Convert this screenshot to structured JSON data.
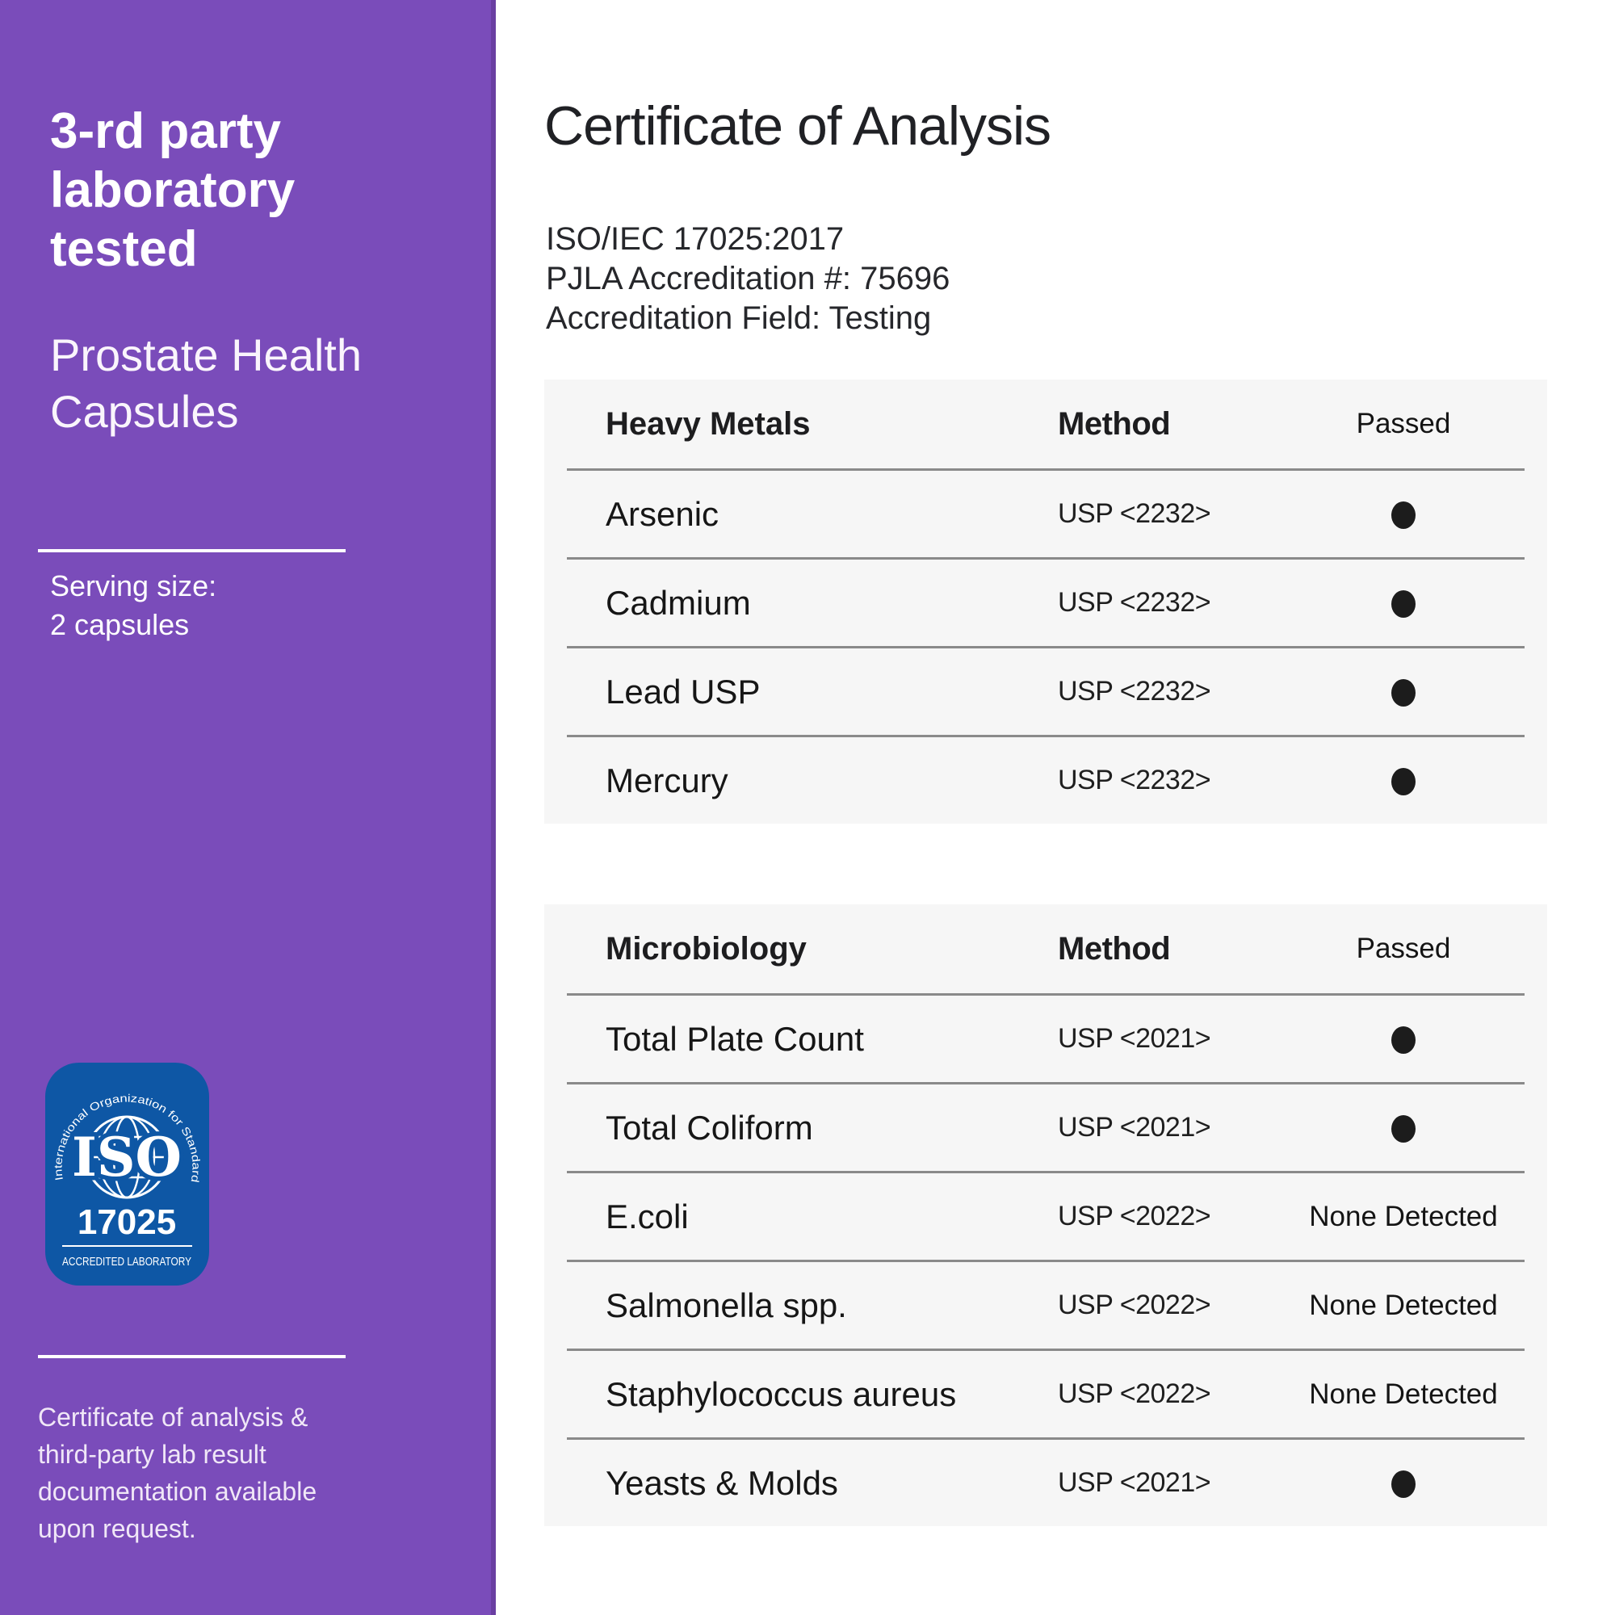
{
  "sidebar": {
    "title_lines": [
      "3-rd party",
      "laboratory",
      "tested"
    ],
    "product_lines": [
      "Prostate Health",
      "Capsules"
    ],
    "serving_lines": [
      "Serving size:",
      "2 capsules"
    ],
    "note_lines": [
      "Certificate of analysis &",
      "third-party lab result",
      "documentation available",
      "upon request."
    ],
    "badge": {
      "arc_text": "International Organization for Standardization",
      "iso": "ISO",
      "number": "17025",
      "caption": "ACCREDITED LABORATORY"
    },
    "colors": {
      "background": "#7a4cba",
      "edge": "#6a3fa2",
      "badge_blue": "#0e57a5",
      "divider": "#ffffff"
    }
  },
  "main": {
    "title": "Certificate of Analysis",
    "accreditation_lines": [
      "ISO/IEC 17025:2017",
      "PJLA Accreditation #: 75696",
      "Accreditation Field: Testing"
    ],
    "colors": {
      "panel_background": "#f6f6f6",
      "divider": "#8a8a8a",
      "dot": "#1c1c1c",
      "text": "#202125"
    },
    "tables": [
      {
        "header": {
          "category": "Heavy Metals",
          "method": "Method",
          "passed": "Passed"
        },
        "rows": [
          {
            "name": "Arsenic",
            "method": "USP <2232>",
            "passed": "dot"
          },
          {
            "name": "Cadmium",
            "method": "USP <2232>",
            "passed": "dot"
          },
          {
            "name": "Lead USP",
            "method": "USP <2232>",
            "passed": "dot"
          },
          {
            "name": "Mercury",
            "method": "USP <2232>",
            "passed": "dot"
          }
        ]
      },
      {
        "header": {
          "category": "Microbiology",
          "method": "Method",
          "passed": "Passed"
        },
        "rows": [
          {
            "name": "Total Plate Count",
            "method": "USP <2021>",
            "passed": "dot"
          },
          {
            "name": "Total Coliform",
            "method": "USP <2021>",
            "passed": "dot"
          },
          {
            "name": "E.coli",
            "method": "USP <2022>",
            "passed": "None Detected"
          },
          {
            "name": "Salmonella spp.",
            "method": "USP <2022>",
            "passed": "None Detected"
          },
          {
            "name": "Staphylococcus aureus",
            "method": "USP <2022>",
            "passed": "None Detected"
          },
          {
            "name": "Yeasts & Molds",
            "method": "USP <2021>",
            "passed": "dot"
          }
        ]
      }
    ]
  }
}
